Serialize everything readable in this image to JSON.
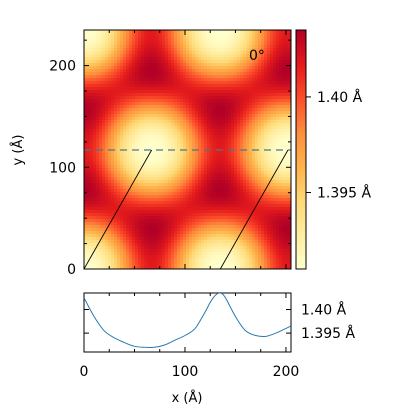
{
  "chart_data": [
    {
      "type": "heatmap",
      "title": "",
      "annotation": "0°",
      "xlabel": "",
      "ylabel": "y (Å)",
      "xlim": [
        0,
        205
      ],
      "ylim": [
        0,
        235
      ],
      "yticks": [
        0,
        100,
        200
      ],
      "colorbar": {
        "range": [
          1.391,
          1.4035
        ],
        "ticks": [
          {
            "value": 1.395,
            "label": "1.395 Å"
          },
          {
            "value": 1.4,
            "label": "1.40 Å"
          }
        ],
        "colormap": [
          "#ffffcc",
          "#ffeda0",
          "#fed976",
          "#feb24c",
          "#fd8d3c",
          "#fc4e2a",
          "#e31a1c",
          "#b10026"
        ]
      },
      "lattice": {
        "description": "hexagonal (honeycomb) moire pattern of bond-length maxima",
        "spot_centers": [
          [
            0,
            0
          ],
          [
            135,
            0
          ],
          [
            67,
            117
          ],
          [
            202,
            117
          ],
          [
            0,
            235
          ],
          [
            135,
            235
          ]
        ]
      },
      "cut_line_y": 117,
      "cell_edges": [
        {
          "from": [
            0,
            0
          ],
          "to": [
            67,
            117
          ]
        },
        {
          "from": [
            135,
            0
          ],
          "to": [
            202,
            117
          ]
        }
      ],
      "colors": {
        "cut_line": "#4a7a8c",
        "cell_edge": "#000000"
      }
    },
    {
      "type": "line",
      "title": "",
      "xlabel": "x (Å)",
      "ylabel": "",
      "xlim": [
        0,
        205
      ],
      "xticks": [
        0,
        100,
        200
      ],
      "ylim": [
        1.391,
        1.4035
      ],
      "yticks": [
        {
          "value": 1.395,
          "label": "1.395 Å"
        },
        {
          "value": 1.4,
          "label": "1.40 Å"
        }
      ],
      "color": "#2a7ab0",
      "x": [
        0,
        10,
        20,
        30,
        40,
        50,
        60,
        70,
        80,
        90,
        100,
        110,
        120,
        125,
        130,
        135,
        140,
        150,
        160,
        170,
        180,
        190,
        200,
        205
      ],
      "y": [
        1.4025,
        1.3985,
        1.3955,
        1.394,
        1.393,
        1.3922,
        1.392,
        1.392,
        1.3925,
        1.3935,
        1.3945,
        1.396,
        1.3995,
        1.4015,
        1.403,
        1.4035,
        1.4025,
        1.3985,
        1.3955,
        1.3945,
        1.3943,
        1.395,
        1.396,
        1.3965
      ]
    }
  ]
}
